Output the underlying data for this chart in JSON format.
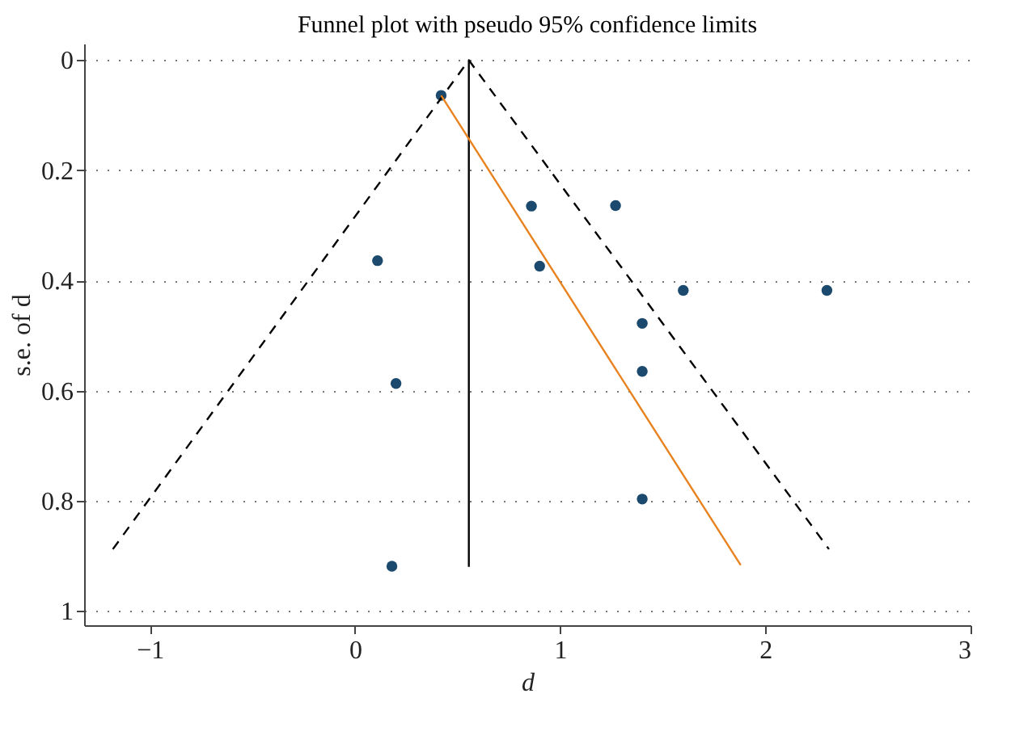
{
  "chart_data": {
    "type": "scatter",
    "title": "Funnel plot with pseudo 95% confidence limits",
    "xlabel": "d",
    "ylabel": "s.e. of d",
    "xlim": [
      -1.32,
      3.0
    ],
    "xticks": [
      -1,
      0,
      1,
      2,
      3
    ],
    "ylim": [
      1.026,
      -0.03
    ],
    "yticks": [
      0,
      0.2,
      0.4,
      0.6,
      0.8,
      1
    ],
    "grid": "y",
    "series": [
      {
        "color": "#1b4a6e",
        "marker": "circle",
        "x": [
          0.42,
          0.11,
          0.2,
          0.18,
          0.86,
          1.27,
          0.9,
          1.6,
          2.3,
          1.4,
          1.4,
          1.4
        ],
        "values": [
          0.064,
          0.364,
          0.587,
          0.919,
          0.265,
          0.264,
          0.374,
          0.418,
          0.418,
          0.478,
          0.565,
          0.797
        ]
      },
      {
        "type": "line",
        "color": "#000000",
        "line_style": "dashed",
        "x": [
          -1.18,
          0.555,
          2.31
        ],
        "values": [
          0.888,
          0,
          0.888
        ]
      },
      {
        "type": "line",
        "color": "#000000",
        "line_style": "solid",
        "x": [
          0.555,
          0.555
        ],
        "values": [
          0,
          0.92
        ]
      },
      {
        "type": "line",
        "color": "#e8821e",
        "line_style": "solid",
        "x": [
          0.42,
          1.88
        ],
        "values": [
          0.064,
          0.917
        ]
      }
    ]
  }
}
